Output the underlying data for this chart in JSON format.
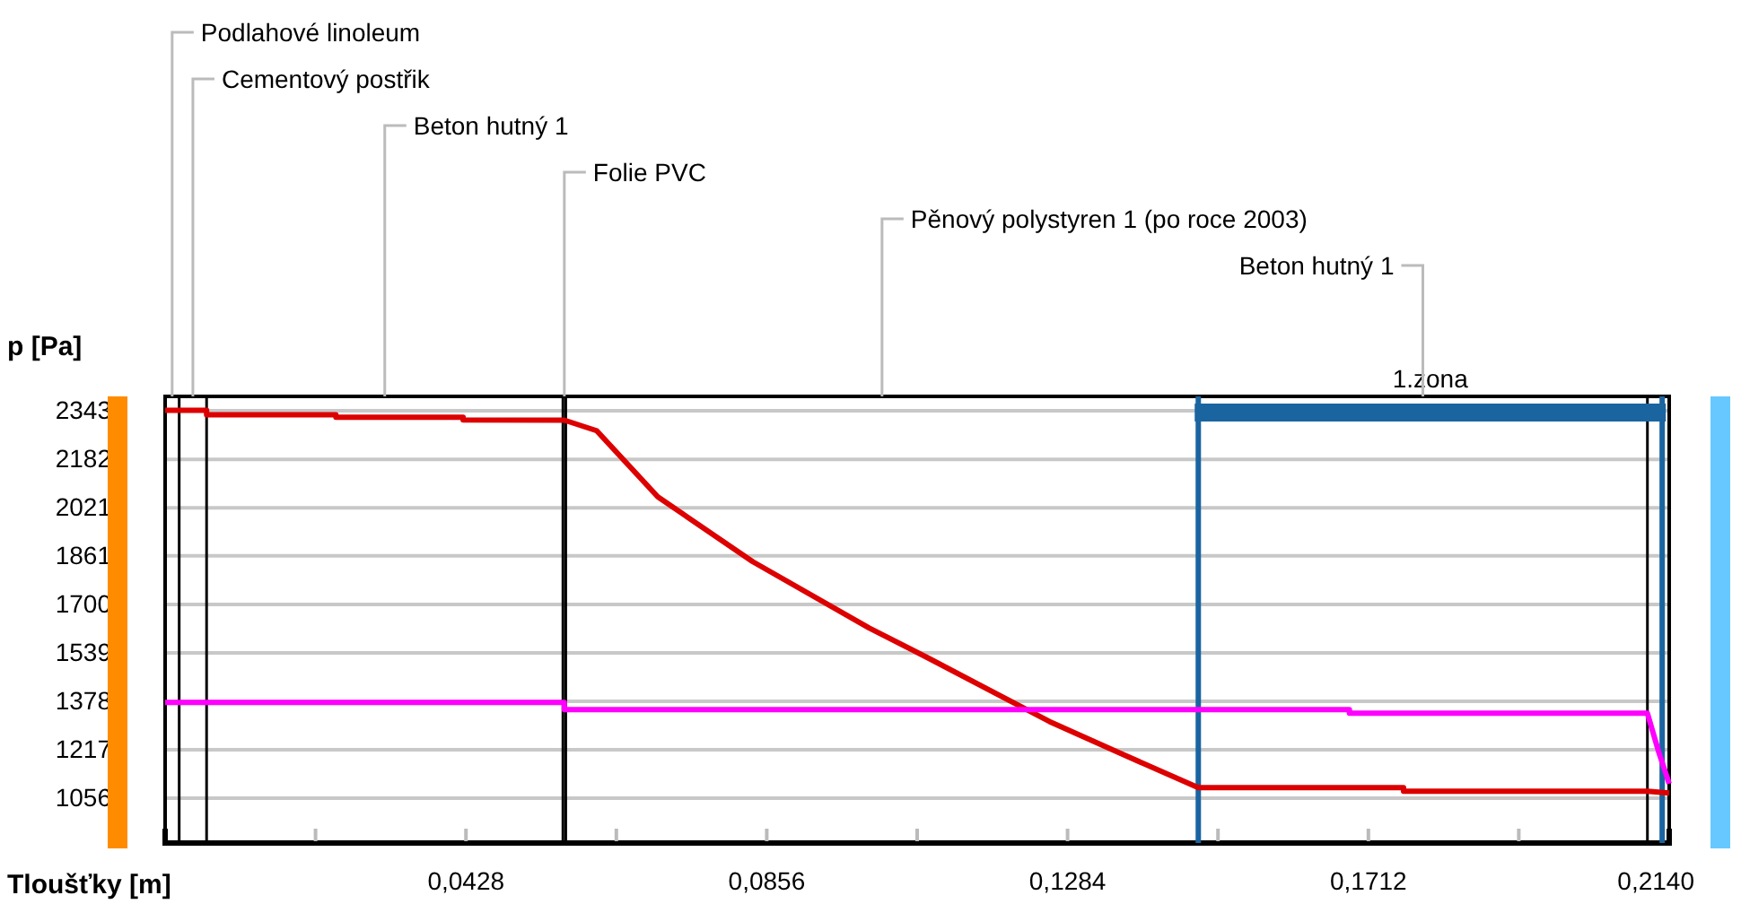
{
  "chart_data": {
    "type": "line",
    "xlabel": "Tloušťky [m]",
    "ylabel": "p [Pa]",
    "xlim": [
      0,
      0.214
    ],
    "ylim": [
      907,
      2391
    ],
    "xticks": [
      {
        "value": 0.0214,
        "label": null
      },
      {
        "value": 0.0428,
        "label": "0,0428"
      },
      {
        "value": 0.0642,
        "label": null
      },
      {
        "value": 0.0856,
        "label": "0,0856"
      },
      {
        "value": 0.107,
        "label": null
      },
      {
        "value": 0.1284,
        "label": "0,1284"
      },
      {
        "value": 0.1498,
        "label": null
      },
      {
        "value": 0.1712,
        "label": "0,1712"
      },
      {
        "value": 0.1926,
        "label": null
      },
      {
        "value": 0.214,
        "label": "0,2140"
      }
    ],
    "yticks": [
      1056,
      1217,
      1378,
      1539,
      1700,
      1861,
      2021,
      2182,
      2343
    ],
    "grid": "y",
    "marker": "none",
    "line_style": "solid",
    "series": [
      {
        "color": "#dd0000",
        "x": [
          0,
          0.0059,
          0.0059,
          0.0243,
          0.0243,
          0.0424,
          0.0424,
          0.0568,
          0.0614,
          0.0701,
          0.0836,
          0.1002,
          0.1087,
          0.1258,
          0.136,
          0.147,
          0.1762,
          0.1762,
          0.2109,
          0.214
        ],
        "values": [
          2345,
          2345,
          2330,
          2330,
          2322,
          2322,
          2313,
          2312,
          2277,
          2057,
          1842,
          1621,
          1520,
          1311,
          1204,
          1091,
          1091,
          1079,
          1079,
          1073
        ]
      },
      {
        "color": "#ff00ff",
        "x": [
          0,
          0.0568,
          0.0568,
          0.1685,
          0.1685,
          0.2109,
          0.2125,
          0.214
        ],
        "values": [
          1374,
          1374,
          1350,
          1350,
          1338,
          1338,
          1210,
          1104
        ]
      }
    ],
    "ref_lines": [
      {
        "axis": "x",
        "value": 0.002,
        "color": "#000000"
      },
      {
        "axis": "x",
        "value": 0.0059,
        "color": "#000000"
      },
      {
        "axis": "x",
        "value": 0.0566,
        "color": "#000000"
      },
      {
        "axis": "x",
        "value": 0.057,
        "color": "#000000"
      },
      {
        "axis": "x",
        "value": 0.147,
        "color": "#1a64a0"
      },
      {
        "axis": "x",
        "value": 0.2109,
        "color": "#000000"
      },
      {
        "axis": "x",
        "value": 0.213,
        "color": "#1a64a0"
      }
    ],
    "bands": [
      {
        "axis": "x",
        "from": 0.147,
        "to": 0.213,
        "label": "1.zona",
        "color": "#1a64a0"
      }
    ],
    "annotations": [
      "Podlahové linoleum",
      "Cementový postřik",
      "Beton hutný 1",
      "Folie PVC",
      "Pěnový polystyren 1 (po roce 2003)",
      "Beton hutný 1"
    ]
  }
}
